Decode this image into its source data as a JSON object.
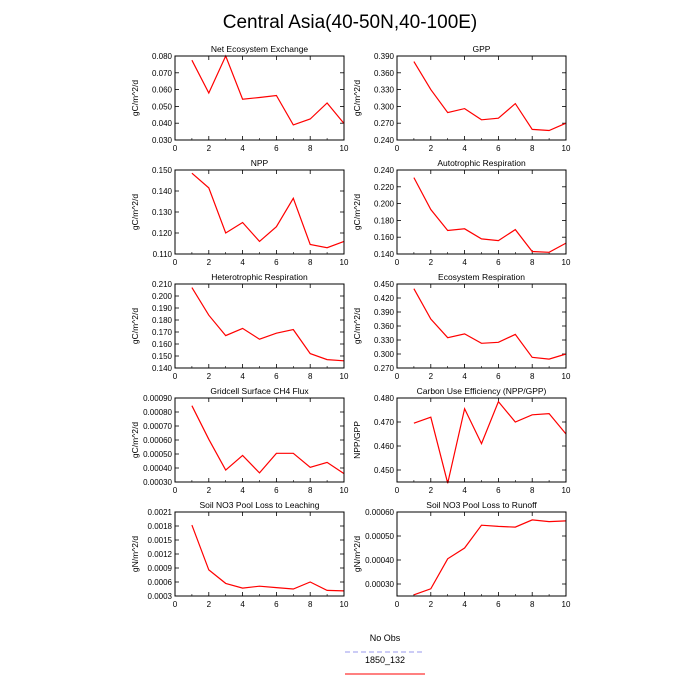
{
  "page": {
    "title": "Central Asia(40-50N,40-100E)"
  },
  "legend": {
    "items": [
      {
        "label": "No Obs",
        "color": "#9999ee",
        "dash": true
      },
      {
        "label": "1850_132",
        "color": "#ff0000",
        "dash": false
      }
    ]
  },
  "chart_data": [
    {
      "type": "line",
      "title": "Net Ecosystem Exchange",
      "ylabel": "gC/m^2/d",
      "x": [
        1,
        2,
        3,
        4,
        5,
        6,
        7,
        8,
        9,
        10
      ],
      "xlim": [
        0,
        10
      ],
      "xticks": [
        0,
        2,
        4,
        6,
        8,
        10
      ],
      "ylim": [
        0.03,
        0.08
      ],
      "yticks": [
        0.03,
        0.04,
        0.05,
        0.06,
        0.07,
        0.08
      ],
      "yticklabels": [
        "0.030",
        "0.040",
        "0.050",
        "0.060",
        "0.070",
        "0.080"
      ],
      "series": [
        {
          "name": "1850_132",
          "color": "#ff0000",
          "values": [
            0.0775,
            0.058,
            0.08,
            0.0543,
            0.0553,
            0.0565,
            0.039,
            0.0425,
            0.052,
            0.0398
          ]
        }
      ]
    },
    {
      "type": "line",
      "title": "GPP",
      "ylabel": "gC/m^2/d",
      "x": [
        1,
        2,
        3,
        4,
        5,
        6,
        7,
        8,
        9,
        10
      ],
      "xlim": [
        0,
        10
      ],
      "xticks": [
        0,
        2,
        4,
        6,
        8,
        10
      ],
      "ylim": [
        0.24,
        0.39
      ],
      "yticks": [
        0.24,
        0.27,
        0.3,
        0.33,
        0.36,
        0.39
      ],
      "yticklabels": [
        "0.240",
        "0.270",
        "0.300",
        "0.330",
        "0.360",
        "0.390"
      ],
      "series": [
        {
          "name": "1850_132",
          "color": "#ff0000",
          "values": [
            0.38,
            0.33,
            0.289,
            0.296,
            0.276,
            0.279,
            0.305,
            0.259,
            0.257,
            0.27
          ]
        }
      ]
    },
    {
      "type": "line",
      "title": "NPP",
      "ylabel": "gC/m^2/d",
      "x": [
        1,
        2,
        3,
        4,
        5,
        6,
        7,
        8,
        9,
        10
      ],
      "xlim": [
        0,
        10
      ],
      "xticks": [
        0,
        2,
        4,
        6,
        8,
        10
      ],
      "ylim": [
        0.11,
        0.15
      ],
      "yticks": [
        0.11,
        0.12,
        0.13,
        0.14,
        0.15
      ],
      "yticklabels": [
        "0.110",
        "0.120",
        "0.130",
        "0.140",
        "0.150"
      ],
      "series": [
        {
          "name": "1850_132",
          "color": "#ff0000",
          "values": [
            0.1485,
            0.1415,
            0.12,
            0.125,
            0.116,
            0.123,
            0.1365,
            0.1145,
            0.113,
            0.116
          ]
        }
      ]
    },
    {
      "type": "line",
      "title": "Autotrophic Respiration",
      "ylabel": "gC/m^2/d",
      "x": [
        1,
        2,
        3,
        4,
        5,
        6,
        7,
        8,
        9,
        10
      ],
      "xlim": [
        0,
        10
      ],
      "xticks": [
        0,
        2,
        4,
        6,
        8,
        10
      ],
      "ylim": [
        0.14,
        0.24
      ],
      "yticks": [
        0.14,
        0.16,
        0.18,
        0.2,
        0.22,
        0.24
      ],
      "yticklabels": [
        "0.140",
        "0.160",
        "0.180",
        "0.200",
        "0.220",
        "0.240"
      ],
      "series": [
        {
          "name": "1850_132",
          "color": "#ff0000",
          "values": [
            0.231,
            0.193,
            0.168,
            0.17,
            0.158,
            0.156,
            0.169,
            0.143,
            0.142,
            0.153
          ]
        }
      ]
    },
    {
      "type": "line",
      "title": "Heterotrophic Respiration",
      "ylabel": "gC/m^2/d",
      "x": [
        1,
        2,
        3,
        4,
        5,
        6,
        7,
        8,
        9,
        10
      ],
      "xlim": [
        0,
        10
      ],
      "xticks": [
        0,
        2,
        4,
        6,
        8,
        10
      ],
      "ylim": [
        0.14,
        0.21
      ],
      "yticks": [
        0.14,
        0.15,
        0.16,
        0.17,
        0.18,
        0.19,
        0.2,
        0.21
      ],
      "yticklabels": [
        "0.140",
        "0.150",
        "0.160",
        "0.170",
        "0.180",
        "0.190",
        "0.200",
        "0.210"
      ],
      "series": [
        {
          "name": "1850_132",
          "color": "#ff0000",
          "values": [
            0.207,
            0.184,
            0.167,
            0.173,
            0.164,
            0.169,
            0.172,
            0.152,
            0.147,
            0.146
          ]
        }
      ]
    },
    {
      "type": "line",
      "title": "Ecosystem Respiration",
      "ylabel": "gC/m^2/d",
      "x": [
        1,
        2,
        3,
        4,
        5,
        6,
        7,
        8,
        9,
        10
      ],
      "xlim": [
        0,
        10
      ],
      "xticks": [
        0,
        2,
        4,
        6,
        8,
        10
      ],
      "ylim": [
        0.27,
        0.45
      ],
      "yticks": [
        0.27,
        0.3,
        0.33,
        0.36,
        0.39,
        0.42,
        0.45
      ],
      "yticklabels": [
        "0.270",
        "0.300",
        "0.330",
        "0.360",
        "0.390",
        "0.420",
        "0.450"
      ],
      "series": [
        {
          "name": "1850_132",
          "color": "#ff0000",
          "values": [
            0.44,
            0.375,
            0.335,
            0.343,
            0.323,
            0.325,
            0.342,
            0.293,
            0.289,
            0.3
          ]
        }
      ]
    },
    {
      "type": "line",
      "title": "Gridcell Surface CH4 Flux",
      "ylabel": "gC/m^2/d",
      "x": [
        1,
        2,
        3,
        4,
        5,
        6,
        7,
        8,
        9,
        10
      ],
      "xlim": [
        0,
        10
      ],
      "xticks": [
        0,
        2,
        4,
        6,
        8,
        10
      ],
      "ylim": [
        0.0003,
        0.0009
      ],
      "yticks": [
        0.0003,
        0.0004,
        0.0005,
        0.0006,
        0.0007,
        0.0008,
        0.0009
      ],
      "yticklabels": [
        "0.00030",
        "0.00040",
        "0.00050",
        "0.00060",
        "0.00070",
        "0.00080",
        "0.00090"
      ],
      "series": [
        {
          "name": "1850_132",
          "color": "#ff0000",
          "values": [
            0.000845,
            0.000605,
            0.000385,
            0.00049,
            0.000365,
            0.000505,
            0.000505,
            0.000405,
            0.00044,
            0.00036
          ]
        }
      ]
    },
    {
      "type": "line",
      "title": "Carbon Use Efficiency (NPP/GPP)",
      "ylabel": "NPP/GPP",
      "x": [
        1,
        2,
        3,
        4,
        5,
        6,
        7,
        8,
        9,
        10
      ],
      "xlim": [
        0,
        10
      ],
      "xticks": [
        0,
        2,
        4,
        6,
        8,
        10
      ],
      "ylim": [
        0.445,
        0.48
      ],
      "yticks": [
        0.45,
        0.46,
        0.47,
        0.48
      ],
      "yticklabels": [
        "0.450",
        "0.460",
        "0.470",
        "0.480"
      ],
      "series": [
        {
          "name": "1850_132",
          "color": "#ff0000",
          "values": [
            0.4695,
            0.472,
            0.4445,
            0.4755,
            0.461,
            0.4785,
            0.47,
            0.473,
            0.4735,
            0.465
          ]
        }
      ]
    },
    {
      "type": "line",
      "title": "Soil NO3 Pool Loss to Leaching",
      "ylabel": "gN/m^2/d",
      "x": [
        1,
        2,
        3,
        4,
        5,
        6,
        7,
        8,
        9,
        10
      ],
      "xlim": [
        0,
        10
      ],
      "xticks": [
        0,
        2,
        4,
        6,
        8,
        10
      ],
      "ylim": [
        0.0003,
        0.0021
      ],
      "yticks": [
        0.0003,
        0.0006,
        0.0009,
        0.0012,
        0.0015,
        0.0018,
        0.0021
      ],
      "yticklabels": [
        "0.0003",
        "0.0006",
        "0.0009",
        "0.0012",
        "0.0015",
        "0.0018",
        "0.0021"
      ],
      "series": [
        {
          "name": "1850_132",
          "color": "#ff0000",
          "values": [
            0.00182,
            0.00086,
            0.00057,
            0.00047,
            0.00051,
            0.00048,
            0.00045,
            0.0006,
            0.00042,
            0.00041
          ]
        }
      ]
    },
    {
      "type": "line",
      "title": "Soil NO3 Pool Loss to Runoff",
      "ylabel": "gN/m^2/d",
      "x": [
        1,
        2,
        3,
        4,
        5,
        6,
        7,
        8,
        9,
        10
      ],
      "xlim": [
        0,
        10
      ],
      "xticks": [
        0,
        2,
        4,
        6,
        8,
        10
      ],
      "ylim": [
        0.00025,
        0.0006
      ],
      "yticks": [
        0.0003,
        0.0004,
        0.0005,
        0.0006
      ],
      "yticklabels": [
        "0.00030",
        "0.00040",
        "0.00050",
        "0.00060"
      ],
      "series": [
        {
          "name": "1850_132",
          "color": "#ff0000",
          "values": [
            0.000255,
            0.00028,
            0.000405,
            0.00045,
            0.000545,
            0.00054,
            0.000537,
            0.000567,
            0.00056,
            0.000563
          ]
        }
      ]
    }
  ]
}
